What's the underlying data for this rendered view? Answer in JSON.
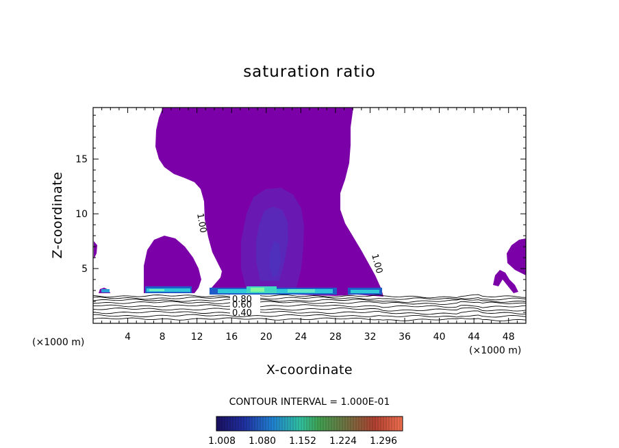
{
  "chart_data": {
    "type": "contour",
    "title": "saturation ratio",
    "xlabel": "X-coordinate",
    "ylabel": "Z-coordinate",
    "x_unit_left": "(×1000 m)",
    "x_unit_right": "(×1000 m)",
    "xlim": [
      0,
      50
    ],
    "ylim": [
      0,
      19.7
    ],
    "xticks": [
      "4",
      "8",
      "12",
      "16",
      "20",
      "24",
      "28",
      "32",
      "36",
      "40",
      "44",
      "48"
    ],
    "yticks": [
      "5",
      "10",
      "15"
    ],
    "contour_labels": [
      "1.00",
      "1.00",
      "0.80",
      "0.60",
      "0.40"
    ],
    "contour_interval": "CONTOUR INTERVAL = 1.000E-01",
    "colorbar_ticks": [
      "1.008",
      "1.080",
      "1.152",
      "1.224",
      "1.296"
    ],
    "colorbar_range": [
      1.0,
      1.33
    ],
    "colors": {
      "supersaturated_fill": "#7b00a8",
      "core_fill": "#6a10b0",
      "cold_color": "#1a1060",
      "warm_color": "#e04020"
    }
  }
}
